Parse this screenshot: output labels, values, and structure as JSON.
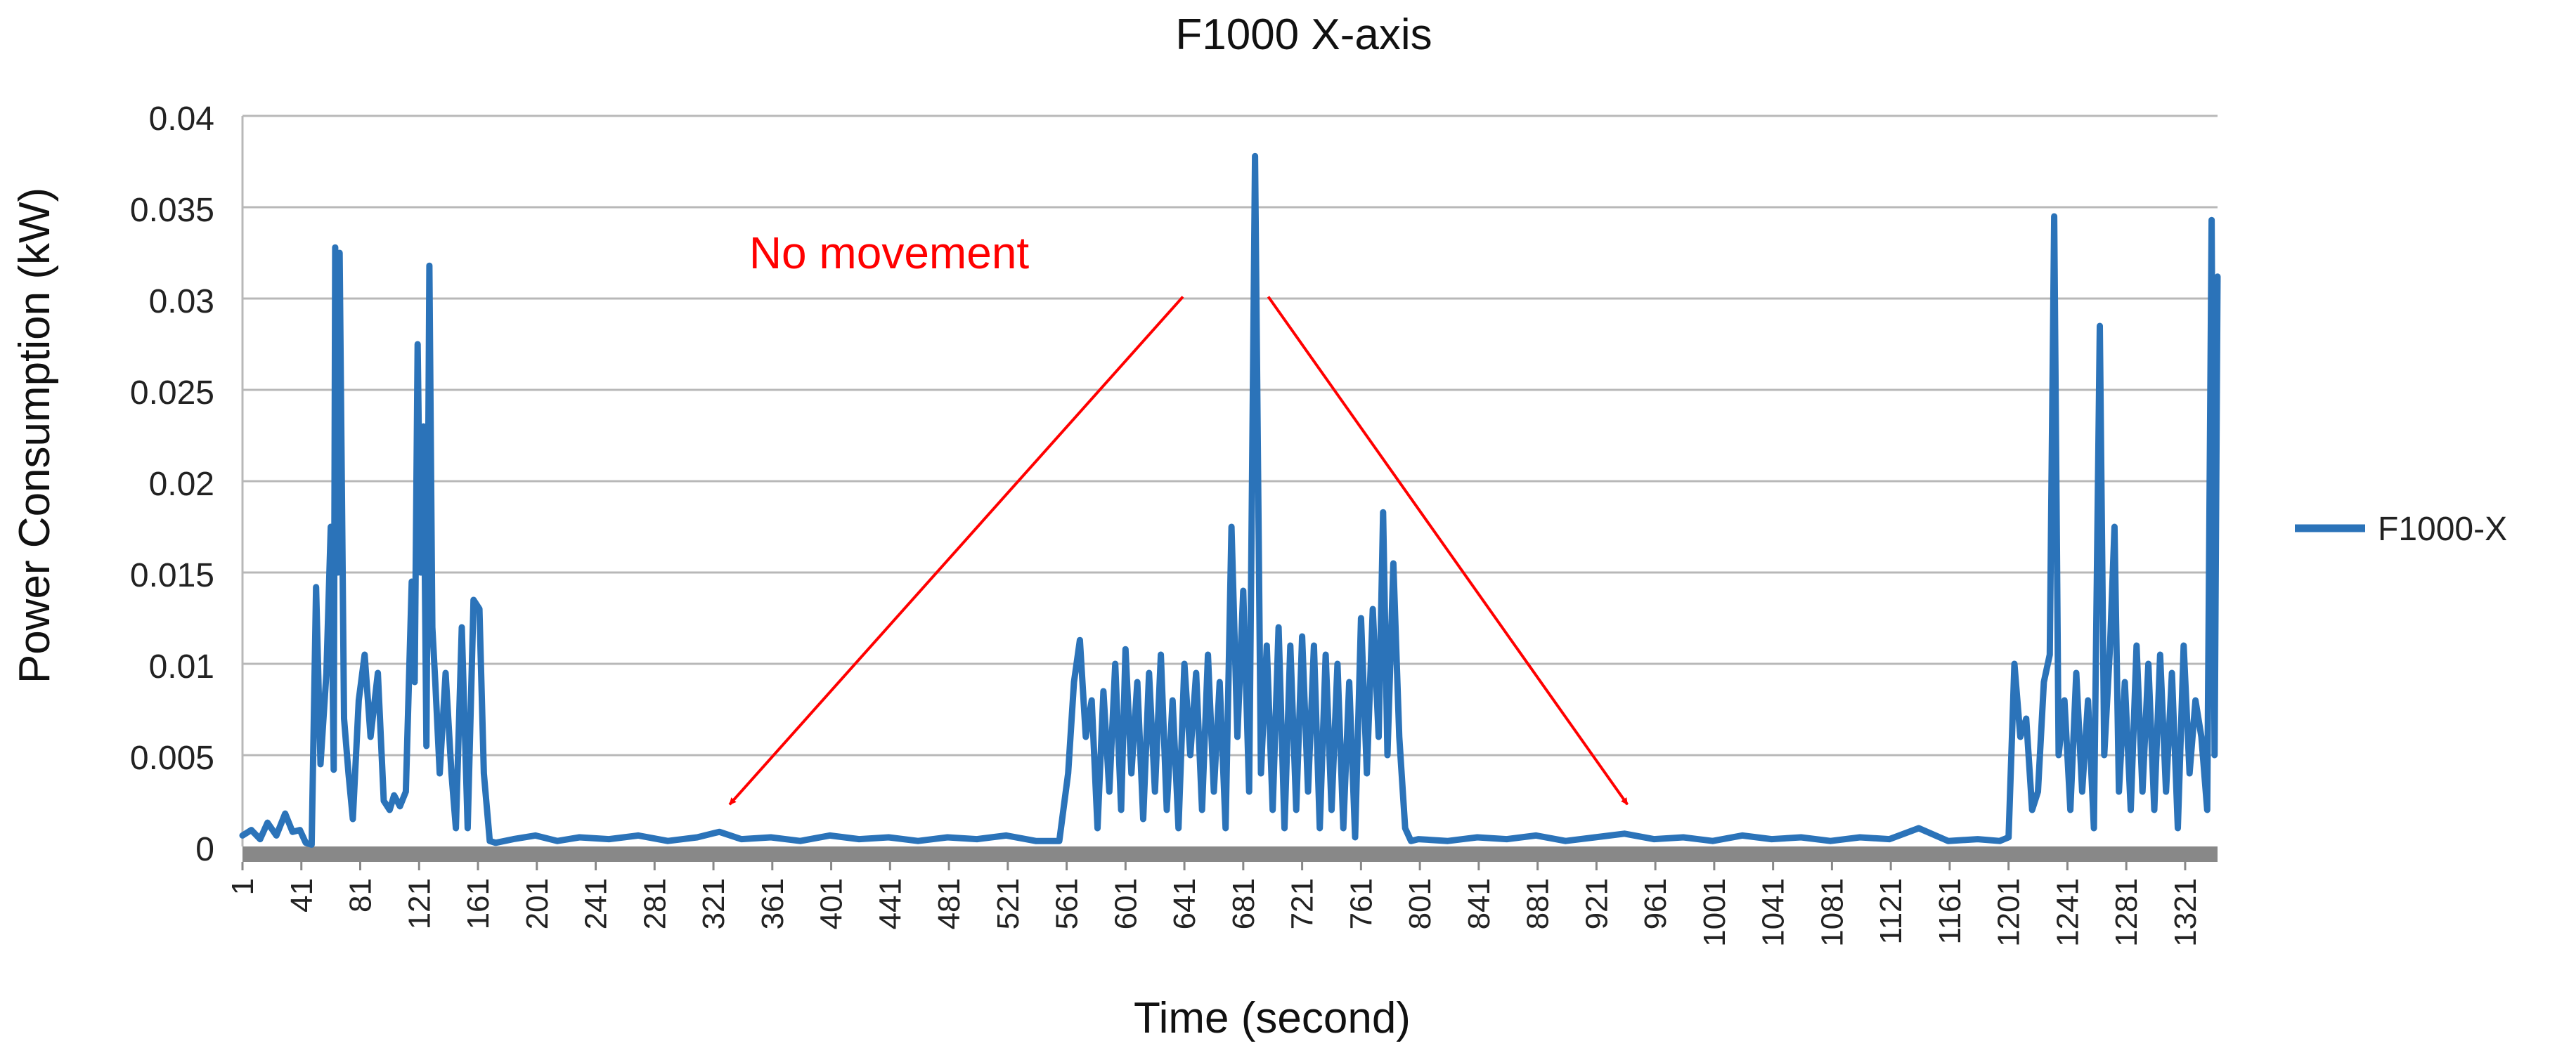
{
  "chart_data": {
    "type": "line",
    "title": "F1000 X-axis",
    "xlabel": "Time (second)",
    "ylabel": "Power Consumption (kW)",
    "xlim": [
      1,
      1343
    ],
    "ylim": [
      0,
      0.04
    ],
    "x_tick_labels": [
      "1",
      "41",
      "81",
      "121",
      "161",
      "201",
      "241",
      "281",
      "321",
      "361",
      "401",
      "441",
      "481",
      "521",
      "561",
      "601",
      "641",
      "681",
      "721",
      "761",
      "801",
      "841",
      "881",
      "921",
      "961",
      "1001",
      "1041",
      "1081",
      "1121",
      "1161",
      "1201",
      "1241",
      "1281",
      "1321"
    ],
    "y_tick_labels": [
      "0",
      "0.005",
      "0.01",
      "0.015",
      "0.02",
      "0.025",
      "0.03",
      "0.035",
      "0.04"
    ],
    "y_ticks": [
      0,
      0.005,
      0.01,
      0.015,
      0.02,
      0.025,
      0.03,
      0.035,
      0.04
    ],
    "grid": true,
    "legend_position": "right",
    "series": [
      {
        "name": "F1000-X",
        "color": "#2b73b9",
        "points": [
          [
            1,
            0.0006
          ],
          [
            7,
            0.0009
          ],
          [
            13,
            0.0004
          ],
          [
            18,
            0.0013
          ],
          [
            24,
            0.0006
          ],
          [
            30,
            0.0018
          ],
          [
            35,
            0.0008
          ],
          [
            40,
            0.0009
          ],
          [
            44,
            0.0002
          ],
          [
            48,
            0.0001
          ],
          [
            51,
            0.0142
          ],
          [
            54,
            0.0045
          ],
          [
            58,
            0.0095
          ],
          [
            61,
            0.0175
          ],
          [
            63,
            0.0042
          ],
          [
            64,
            0.0328
          ],
          [
            66,
            0.015
          ],
          [
            67,
            0.0325
          ],
          [
            70,
            0.007
          ],
          [
            73,
            0.004
          ],
          [
            76,
            0.0015
          ],
          [
            80,
            0.008
          ],
          [
            84,
            0.0105
          ],
          [
            88,
            0.006
          ],
          [
            93,
            0.0095
          ],
          [
            97,
            0.0025
          ],
          [
            101,
            0.002
          ],
          [
            104,
            0.0028
          ],
          [
            108,
            0.0022
          ],
          [
            112,
            0.003
          ],
          [
            116,
            0.0145
          ],
          [
            118,
            0.009
          ],
          [
            120,
            0.0275
          ],
          [
            122,
            0.015
          ],
          [
            124,
            0.023
          ],
          [
            126,
            0.0055
          ],
          [
            128,
            0.0318
          ],
          [
            130,
            0.012
          ],
          [
            132,
            0.009
          ],
          [
            135,
            0.004
          ],
          [
            139,
            0.0095
          ],
          [
            143,
            0.004
          ],
          [
            146,
            0.001
          ],
          [
            150,
            0.012
          ],
          [
            154,
            0.001
          ],
          [
            158,
            0.0135
          ],
          [
            162,
            0.013
          ],
          [
            165,
            0.004
          ],
          [
            169,
            0.0003
          ],
          [
            173,
            0.0002
          ],
          [
            185,
            0.0004
          ],
          [
            200,
            0.0006
          ],
          [
            215,
            0.0003
          ],
          [
            230,
            0.0005
          ],
          [
            250,
            0.0004
          ],
          [
            270,
            0.0006
          ],
          [
            290,
            0.0003
          ],
          [
            310,
            0.0005
          ],
          [
            325,
            0.0008
          ],
          [
            340,
            0.0004
          ],
          [
            360,
            0.0005
          ],
          [
            380,
            0.0003
          ],
          [
            400,
            0.0006
          ],
          [
            420,
            0.0004
          ],
          [
            440,
            0.0005
          ],
          [
            460,
            0.0003
          ],
          [
            480,
            0.0005
          ],
          [
            500,
            0.0004
          ],
          [
            520,
            0.0006
          ],
          [
            540,
            0.0003
          ],
          [
            556,
            0.0003
          ],
          [
            562,
            0.004
          ],
          [
            566,
            0.009
          ],
          [
            570,
            0.0113
          ],
          [
            574,
            0.006
          ],
          [
            578,
            0.008
          ],
          [
            582,
            0.001
          ],
          [
            586,
            0.0085
          ],
          [
            590,
            0.003
          ],
          [
            594,
            0.01
          ],
          [
            598,
            0.002
          ],
          [
            601,
            0.0108
          ],
          [
            605,
            0.004
          ],
          [
            609,
            0.009
          ],
          [
            613,
            0.0015
          ],
          [
            617,
            0.0095
          ],
          [
            621,
            0.003
          ],
          [
            625,
            0.0105
          ],
          [
            629,
            0.002
          ],
          [
            633,
            0.008
          ],
          [
            637,
            0.001
          ],
          [
            641,
            0.01
          ],
          [
            645,
            0.005
          ],
          [
            649,
            0.0095
          ],
          [
            653,
            0.002
          ],
          [
            657,
            0.0105
          ],
          [
            661,
            0.003
          ],
          [
            665,
            0.009
          ],
          [
            669,
            0.001
          ],
          [
            673,
            0.0175
          ],
          [
            677,
            0.006
          ],
          [
            681,
            0.014
          ],
          [
            685,
            0.003
          ],
          [
            689,
            0.0378
          ],
          [
            693,
            0.004
          ],
          [
            697,
            0.011
          ],
          [
            701,
            0.002
          ],
          [
            705,
            0.012
          ],
          [
            709,
            0.001
          ],
          [
            713,
            0.011
          ],
          [
            717,
            0.002
          ],
          [
            721,
            0.0115
          ],
          [
            725,
            0.003
          ],
          [
            729,
            0.011
          ],
          [
            733,
            0.001
          ],
          [
            737,
            0.0105
          ],
          [
            741,
            0.002
          ],
          [
            745,
            0.01
          ],
          [
            749,
            0.001
          ],
          [
            753,
            0.009
          ],
          [
            757,
            0.0005
          ],
          [
            761,
            0.0125
          ],
          [
            765,
            0.004
          ],
          [
            769,
            0.013
          ],
          [
            773,
            0.006
          ],
          [
            776,
            0.0183
          ],
          [
            779,
            0.005
          ],
          [
            783,
            0.0155
          ],
          [
            787,
            0.006
          ],
          [
            791,
            0.001
          ],
          [
            795,
            0.0003
          ],
          [
            800,
            0.0004
          ],
          [
            820,
            0.0003
          ],
          [
            840,
            0.0005
          ],
          [
            860,
            0.0004
          ],
          [
            880,
            0.0006
          ],
          [
            900,
            0.0003
          ],
          [
            920,
            0.0005
          ],
          [
            940,
            0.0007
          ],
          [
            960,
            0.0004
          ],
          [
            980,
            0.0005
          ],
          [
            1000,
            0.0003
          ],
          [
            1020,
            0.0006
          ],
          [
            1040,
            0.0004
          ],
          [
            1060,
            0.0005
          ],
          [
            1080,
            0.0003
          ],
          [
            1100,
            0.0005
          ],
          [
            1120,
            0.0004
          ],
          [
            1140,
            0.001
          ],
          [
            1160,
            0.0003
          ],
          [
            1180,
            0.0004
          ],
          [
            1195,
            0.0003
          ],
          [
            1201,
            0.0005
          ],
          [
            1205,
            0.01
          ],
          [
            1209,
            0.006
          ],
          [
            1213,
            0.007
          ],
          [
            1217,
            0.002
          ],
          [
            1221,
            0.003
          ],
          [
            1225,
            0.009
          ],
          [
            1229,
            0.0105
          ],
          [
            1232,
            0.0345
          ],
          [
            1235,
            0.005
          ],
          [
            1239,
            0.008
          ],
          [
            1243,
            0.002
          ],
          [
            1247,
            0.0095
          ],
          [
            1251,
            0.003
          ],
          [
            1255,
            0.008
          ],
          [
            1259,
            0.001
          ],
          [
            1263,
            0.0285
          ],
          [
            1266,
            0.005
          ],
          [
            1270,
            0.011
          ],
          [
            1273,
            0.0175
          ],
          [
            1276,
            0.003
          ],
          [
            1280,
            0.009
          ],
          [
            1284,
            0.002
          ],
          [
            1288,
            0.011
          ],
          [
            1292,
            0.003
          ],
          [
            1296,
            0.01
          ],
          [
            1300,
            0.002
          ],
          [
            1304,
            0.0105
          ],
          [
            1308,
            0.003
          ],
          [
            1312,
            0.0095
          ],
          [
            1316,
            0.001
          ],
          [
            1320,
            0.011
          ],
          [
            1324,
            0.004
          ],
          [
            1328,
            0.008
          ],
          [
            1332,
            0.006
          ],
          [
            1336,
            0.002
          ],
          [
            1339,
            0.0343
          ],
          [
            1341,
            0.005
          ],
          [
            1343,
            0.0312
          ]
        ]
      }
    ],
    "annotations": [
      {
        "text": "No movement",
        "color": "#ff0000",
        "arrows": [
          {
            "from": [
              640,
              0.0301
            ],
            "to": [
              332,
              0.0023
            ]
          },
          {
            "from": [
              698,
              0.0301
            ],
            "to": [
              942,
              0.0023
            ]
          }
        ]
      }
    ]
  }
}
